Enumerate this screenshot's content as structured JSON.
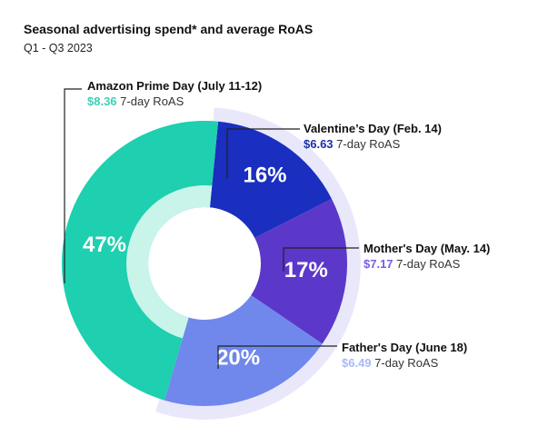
{
  "title": "Seasonal advertising spend* and average RoAS",
  "subtitle": "Q1 - Q3 2023",
  "roas_suffix": "7-day RoAS",
  "chart_data": {
    "type": "pie",
    "style": "donut",
    "unit": "%",
    "slices": [
      {
        "label": "Valentine’s Day (Feb. 14)",
        "percent_label": "16%",
        "value": 16,
        "roas": 6.63,
        "roas_label": "$6.63",
        "color": "#1a2fbf",
        "roas_color": "#1a2fa8"
      },
      {
        "label": "Mother's Day (May. 14)",
        "percent_label": "17%",
        "value": 17,
        "roas": 7.17,
        "roas_label": "$7.17",
        "color": "#5b38c9",
        "roas_color": "#7a5ae6"
      },
      {
        "label": "Father's Day (June 18)",
        "percent_label": "20%",
        "value": 20,
        "roas": 6.49,
        "roas_label": "$6.49",
        "color": "#7088ec",
        "roas_color": "#a8b8f5"
      },
      {
        "label": "Amazon Prime Day (July 11-12)",
        "percent_label": "47%",
        "value": 47,
        "roas": 8.36,
        "roas_label": "$8.36",
        "color": "#1ecfb0",
        "roas_color": "#3fd0b5"
      }
    ]
  }
}
